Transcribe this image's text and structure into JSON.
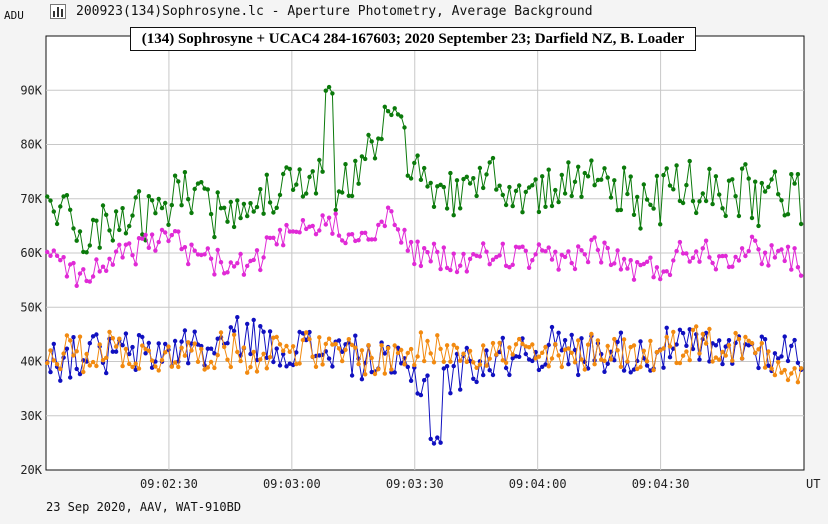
{
  "window": {
    "title": "200923(134)Sophrosyne.lc - Aperture Photometry, Average Background",
    "icon": "chart-bars-icon"
  },
  "footer": {
    "text": "23 Sep 2020, AAV, WAT-910BD"
  },
  "chart_data": {
    "type": "scatter",
    "title": "(134) Sophrosyne + UCAC4 284-167603; 2020 September 23; Darfield NZ, B. Loader",
    "xlabel": "UT",
    "ylabel": "ADU",
    "x_range": [
      "09:02:00",
      "09:05:05"
    ],
    "ylim": [
      20000,
      100000
    ],
    "y_ticks": [
      20000,
      30000,
      40000,
      50000,
      60000,
      70000,
      80000,
      90000
    ],
    "y_tick_labels": [
      "20K",
      "30K",
      "40K",
      "50K",
      "60K",
      "70K",
      "80K",
      "90K"
    ],
    "x_ticks": [
      "09:02:30",
      "09:03:00",
      "09:03:30",
      "09:04:00",
      "09:04:30"
    ],
    "grid": true,
    "connected_points": true,
    "series": [
      {
        "color": "#0b7a0b",
        "anchors": [
          [
            "09:02:00",
            68000
          ],
          [
            "09:02:05",
            66500
          ],
          [
            "09:02:10",
            63000
          ],
          [
            "09:02:15",
            66500
          ],
          [
            "09:02:20",
            68000
          ],
          [
            "09:02:25",
            67000
          ],
          [
            "09:02:30",
            70000
          ],
          [
            "09:02:35",
            71000
          ],
          [
            "09:02:40",
            68000
          ],
          [
            "09:02:45",
            66000
          ],
          [
            "09:02:50",
            67000
          ],
          [
            "09:02:55",
            71000
          ],
          [
            "09:03:00",
            72000
          ],
          [
            "09:03:05",
            76000
          ],
          [
            "09:03:10",
            71000
          ],
          [
            "09:03:15",
            73000
          ],
          [
            "09:03:20",
            79000
          ],
          [
            "09:03:25",
            85000
          ],
          [
            "09:03:30",
            75000
          ],
          [
            "09:03:35",
            72000
          ],
          [
            "09:03:40",
            70000
          ],
          [
            "09:03:45",
            71000
          ],
          [
            "09:03:50",
            74000
          ],
          [
            "09:03:55",
            73000
          ],
          [
            "09:04:00",
            70000
          ],
          [
            "09:04:05",
            71000
          ],
          [
            "09:04:10",
            74000
          ],
          [
            "09:04:15",
            71000
          ],
          [
            "09:04:20",
            72000
          ],
          [
            "09:04:25",
            69000
          ],
          [
            "09:04:30",
            70000
          ],
          [
            "09:04:35",
            73000
          ],
          [
            "09:04:40",
            71000
          ],
          [
            "09:04:45",
            70000
          ],
          [
            "09:04:50",
            72000
          ],
          [
            "09:04:55",
            69000
          ],
          [
            "09:05:00",
            72000
          ],
          [
            "09:05:05",
            69000
          ]
        ],
        "extremes": {
          "max": 91000,
          "max_at": "09:03:09",
          "min": 56000
        }
      },
      {
        "color": "#e02ad6",
        "anchors": [
          [
            "09:02:00",
            61000
          ],
          [
            "09:02:05",
            58000
          ],
          [
            "09:02:10",
            55000
          ],
          [
            "09:02:15",
            59000
          ],
          [
            "09:02:20",
            60000
          ],
          [
            "09:02:25",
            61000
          ],
          [
            "09:02:30",
            63000
          ],
          [
            "09:02:35",
            60000
          ],
          [
            "09:02:40",
            59000
          ],
          [
            "09:02:45",
            57000
          ],
          [
            "09:02:50",
            58000
          ],
          [
            "09:02:55",
            61000
          ],
          [
            "09:03:00",
            63000
          ],
          [
            "09:03:05",
            64000
          ],
          [
            "09:03:10",
            66000
          ],
          [
            "09:03:15",
            63000
          ],
          [
            "09:03:20",
            65000
          ],
          [
            "09:03:25",
            66000
          ],
          [
            "09:03:30",
            60000
          ],
          [
            "09:03:35",
            59000
          ],
          [
            "09:03:40",
            58000
          ],
          [
            "09:03:45",
            59000
          ],
          [
            "09:03:50",
            60000
          ],
          [
            "09:03:55",
            59000
          ],
          [
            "09:04:00",
            59000
          ],
          [
            "09:04:05",
            58000
          ],
          [
            "09:04:10",
            60000
          ],
          [
            "09:04:15",
            61000
          ],
          [
            "09:04:20",
            58000
          ],
          [
            "09:04:25",
            57000
          ],
          [
            "09:04:30",
            57000
          ],
          [
            "09:04:35",
            60000
          ],
          [
            "09:04:40",
            61000
          ],
          [
            "09:04:45",
            59000
          ],
          [
            "09:04:50",
            61000
          ],
          [
            "09:04:55",
            60000
          ],
          [
            "09:05:00",
            60000
          ],
          [
            "09:05:05",
            58000
          ]
        ],
        "extremes": {
          "max": 69000,
          "min": 50000
        }
      },
      {
        "color": "#1010c0",
        "anchors": [
          [
            "09:02:00",
            41000
          ],
          [
            "09:02:05",
            40000
          ],
          [
            "09:02:10",
            42000
          ],
          [
            "09:02:15",
            41000
          ],
          [
            "09:02:20",
            42000
          ],
          [
            "09:02:25",
            41000
          ],
          [
            "09:02:30",
            42000
          ],
          [
            "09:02:35",
            43000
          ],
          [
            "09:02:40",
            42000
          ],
          [
            "09:02:45",
            44000
          ],
          [
            "09:02:50",
            45000
          ],
          [
            "09:02:55",
            42000
          ],
          [
            "09:03:00",
            43000
          ],
          [
            "09:03:05",
            42000
          ],
          [
            "09:03:10",
            42000
          ],
          [
            "09:03:15",
            41000
          ],
          [
            "09:03:20",
            40000
          ],
          [
            "09:03:25",
            39000
          ],
          [
            "09:03:30",
            37000
          ],
          [
            "09:03:35",
            35000
          ],
          [
            "09:03:40",
            38000
          ],
          [
            "09:03:45",
            40000
          ],
          [
            "09:03:50",
            40000
          ],
          [
            "09:03:55",
            42000
          ],
          [
            "09:04:00",
            42000
          ],
          [
            "09:04:05",
            43000
          ],
          [
            "09:04:10",
            41000
          ],
          [
            "09:04:15",
            42000
          ],
          [
            "09:04:20",
            42000
          ],
          [
            "09:04:25",
            41000
          ],
          [
            "09:04:30",
            42000
          ],
          [
            "09:04:35",
            43000
          ],
          [
            "09:04:40",
            42000
          ],
          [
            "09:04:45",
            41000
          ],
          [
            "09:04:50",
            43000
          ],
          [
            "09:04:55",
            42000
          ],
          [
            "09:05:00",
            42000
          ],
          [
            "09:05:05",
            41000
          ]
        ],
        "extremes": {
          "max": 52000,
          "min": 24000,
          "min_at": "09:03:35"
        }
      },
      {
        "color": "#f28a10",
        "anchors": [
          [
            "09:02:00",
            41000
          ],
          [
            "09:02:05",
            42000
          ],
          [
            "09:02:10",
            41000
          ],
          [
            "09:02:15",
            43000
          ],
          [
            "09:02:20",
            42000
          ],
          [
            "09:02:25",
            40000
          ],
          [
            "09:02:30",
            42000
          ],
          [
            "09:02:35",
            41000
          ],
          [
            "09:02:40",
            42000
          ],
          [
            "09:02:45",
            42000
          ],
          [
            "09:02:50",
            41000
          ],
          [
            "09:02:55",
            42000
          ],
          [
            "09:03:00",
            43000
          ],
          [
            "09:03:05",
            42000
          ],
          [
            "09:03:10",
            41000
          ],
          [
            "09:03:15",
            42000
          ],
          [
            "09:03:20",
            40000
          ],
          [
            "09:03:25",
            41000
          ],
          [
            "09:03:30",
            42000
          ],
          [
            "09:03:35",
            42000
          ],
          [
            "09:03:40",
            43000
          ],
          [
            "09:03:45",
            42000
          ],
          [
            "09:03:50",
            41000
          ],
          [
            "09:03:55",
            42000
          ],
          [
            "09:04:00",
            41000
          ],
          [
            "09:04:05",
            40000
          ],
          [
            "09:04:10",
            41000
          ],
          [
            "09:04:15",
            43000
          ],
          [
            "09:04:20",
            42000
          ],
          [
            "09:04:25",
            41000
          ],
          [
            "09:04:30",
            42000
          ],
          [
            "09:04:35",
            43000
          ],
          [
            "09:04:40",
            44000
          ],
          [
            "09:04:45",
            42000
          ],
          [
            "09:04:50",
            43000
          ],
          [
            "09:04:55",
            42000
          ],
          [
            "09:05:00",
            40000
          ],
          [
            "09:05:05",
            36000
          ]
        ],
        "extremes": {
          "max": 55000,
          "min": 31000
        }
      }
    ]
  }
}
